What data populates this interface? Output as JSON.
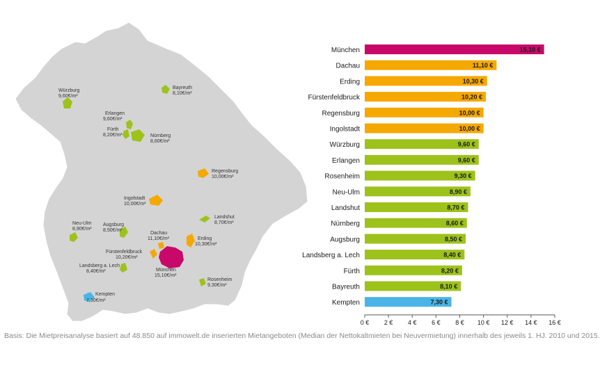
{
  "caption": "Basis: Die Mietpreisanalyse basiert auf 48.850 auf immowelt.de inserierten Mietangeboten (Median der Nettokaltmieten bei Neuvermietung) innerhalb des jeweils 1. HJ. 2010 und 2015.",
  "colors": {
    "muenchen": "#c8096a",
    "high": "#f5a800",
    "mid": "#9dc21b",
    "low": "#4ab4e6",
    "map": "#d4d4d4"
  },
  "map": {
    "labels": [
      {
        "id": "wuerzburg",
        "name": "Würzburg",
        "value": "9,60€/m²"
      },
      {
        "id": "bayreuth",
        "name": "Bayreuth",
        "value": "8,10€/m²"
      },
      {
        "id": "erlangen",
        "name": "Erlangen",
        "value": "9,60€/m²"
      },
      {
        "id": "fuerth",
        "name": "Fürth",
        "value": "8,20€/m²"
      },
      {
        "id": "nuernberg",
        "name": "Nürnberg",
        "value": "8,60€/m²"
      },
      {
        "id": "regensburg",
        "name": "Regensburg",
        "value": "10,00€/m²"
      },
      {
        "id": "ingolstadt",
        "name": "Ingolstadt",
        "value": "10,00€/m²"
      },
      {
        "id": "landshut",
        "name": "Landshut",
        "value": "8,70€/m²"
      },
      {
        "id": "neu-ulm",
        "name": "Neu-Ulm",
        "value": "8,90€/m²"
      },
      {
        "id": "augsburg",
        "name": "Augsburg",
        "value": "8,50€/m²"
      },
      {
        "id": "dachau",
        "name": "Dachau",
        "value": "11,10€/m²"
      },
      {
        "id": "erding",
        "name": "Erding",
        "value": "10,30€/m²"
      },
      {
        "id": "fuerstenfeldbruck",
        "name": "Fürstenfeldbruck",
        "value": "10,20€/m²"
      },
      {
        "id": "landsberg",
        "name": "Landsberg a. Lech",
        "value": "8,40€/m²"
      },
      {
        "id": "muenchen",
        "name": "München",
        "value": "15,10€/m²"
      },
      {
        "id": "rosenheim",
        "name": "Rosenheim",
        "value": "9,30€/m²"
      },
      {
        "id": "kempten",
        "name": "Kempten",
        "value": "7,30€/m²"
      }
    ]
  },
  "chart_data": {
    "type": "bar",
    "orientation": "horizontal",
    "categories": [
      "München",
      "Dachau",
      "Erding",
      "Fürstenfeldbruck",
      "Regensburg",
      "Ingolstadt",
      "Würzburg",
      "Erlangen",
      "Rosenheim",
      "Neu-Ulm",
      "Landshut",
      "Nürnberg",
      "Augsburg",
      "Landsberg a. Lech",
      "Fürth",
      "Bayreuth",
      "Kempten"
    ],
    "values": [
      15.1,
      11.1,
      10.3,
      10.2,
      10.0,
      10.0,
      9.6,
      9.6,
      9.3,
      8.9,
      8.7,
      8.6,
      8.5,
      8.4,
      8.2,
      8.1,
      7.3
    ],
    "value_labels": [
      "15,10 €",
      "11,10 €",
      "10,30 €",
      "10,20 €",
      "10,00 €",
      "10,00 €",
      "9,60 €",
      "9,60 €",
      "9,30 €",
      "8,90 €",
      "8,70 €",
      "8,60 €",
      "8,50 €",
      "8,40 €",
      "8,20 €",
      "8,10 €",
      "7,30 €"
    ],
    "bar_colors": [
      "#c8096a",
      "#f5a800",
      "#f5a800",
      "#f5a800",
      "#f5a800",
      "#f5a800",
      "#9dc21b",
      "#9dc21b",
      "#9dc21b",
      "#9dc21b",
      "#9dc21b",
      "#9dc21b",
      "#9dc21b",
      "#9dc21b",
      "#9dc21b",
      "#9dc21b",
      "#4ab4e6"
    ],
    "xlim": [
      0,
      16
    ],
    "xticks": [
      0,
      2,
      4,
      6,
      8,
      10,
      12,
      14,
      16
    ],
    "xtick_labels": [
      "0 €",
      "2 €",
      "4 €",
      "6 €",
      "8 €",
      "10 €",
      "12 €",
      "14 €",
      "16 €"
    ],
    "title": "",
    "xlabel": "",
    "ylabel": "",
    "grid": false,
    "legend": "none"
  }
}
